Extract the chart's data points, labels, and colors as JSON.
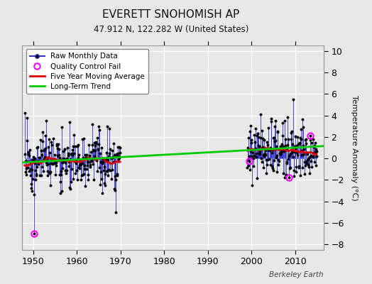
{
  "title": "EVERETT SNOHOMISH AP",
  "subtitle": "47.912 N, 122.282 W (United States)",
  "ylabel": "Temperature Anomaly (°C)",
  "watermark": "Berkeley Earth",
  "ylim": [
    -8.5,
    10.5
  ],
  "xlim": [
    1947.5,
    2016.5
  ],
  "yticks": [
    -8,
    -6,
    -4,
    -2,
    0,
    2,
    4,
    6,
    8,
    10
  ],
  "xticks": [
    1950,
    1960,
    1970,
    1980,
    1990,
    2000,
    2010
  ],
  "bg_color": "#e8e8e8",
  "grid_color": "#ffffff",
  "raw_color": "#3333cc",
  "dot_color": "#000000",
  "ma_color": "#dd0000",
  "trend_color": "#00cc00",
  "qc_color": "#ff00ff",
  "trend_x": [
    1947.5,
    2016.5
  ],
  "trend_y": [
    -0.38,
    1.15
  ],
  "legend_loc": "upper left"
}
